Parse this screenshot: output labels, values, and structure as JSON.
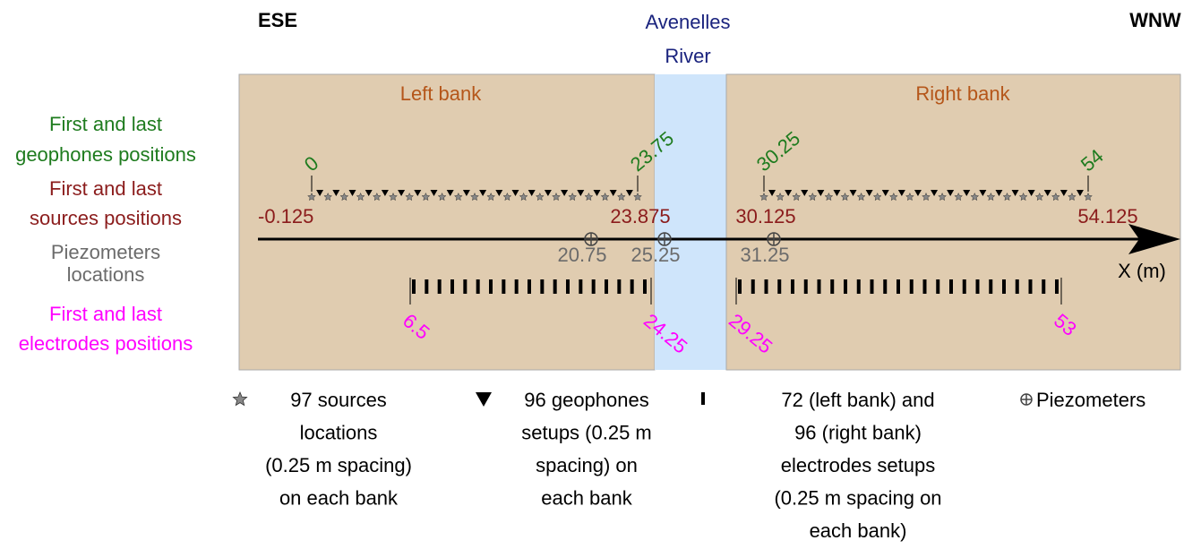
{
  "header": {
    "left": "ESE",
    "right": "WNW",
    "river": [
      "Avenelles",
      "River"
    ]
  },
  "banks": {
    "left": "Left bank",
    "right": "Right bank"
  },
  "side_labels": [
    {
      "lines": [
        "First and last",
        "geophones positions"
      ],
      "color": "#1e7b1e"
    },
    {
      "lines": [
        "First and last",
        "sources positions"
      ],
      "color": "#8b1c1c"
    },
    {
      "lines": [
        "Piezometers",
        "locations"
      ],
      "color": "#6b6b6b"
    },
    {
      "lines": [
        "First and last",
        "electrodes positions"
      ],
      "color": "#ff00ff"
    }
  ],
  "geophones": [
    "0",
    "23.75",
    "30.25",
    "54"
  ],
  "sources": [
    "-0.125",
    "23.875",
    "30.125",
    "54.125"
  ],
  "piezometers": [
    "20.75",
    "25.25",
    "31.25"
  ],
  "electrodes": [
    "6.5",
    "24.25",
    "29.25",
    "53"
  ],
  "axis_label": "X (m)",
  "legend": [
    {
      "lines": [
        "97 sources",
        "locations",
        "(0.25 m spacing)",
        "on each bank"
      ]
    },
    {
      "lines": [
        "96 geophones",
        "setups (0.25 m",
        "spacing) on",
        "each bank"
      ]
    },
    {
      "lines": [
        "72 (left bank) and",
        "96 (right bank)",
        "electrodes setups",
        "(0.25 m spacing on",
        "each bank)"
      ]
    },
    {
      "lines": [
        "Piezometers"
      ]
    }
  ]
}
